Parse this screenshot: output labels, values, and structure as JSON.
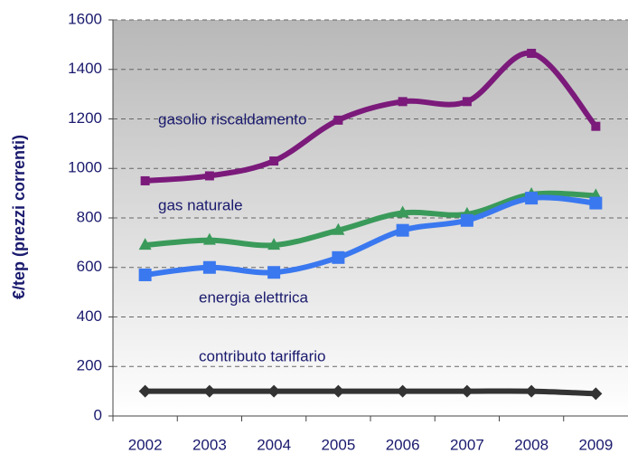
{
  "chart_data": {
    "type": "line",
    "y_label": "€/tep (prezzi correnti)",
    "categories": [
      "2002",
      "2003",
      "2004",
      "2005",
      "2006",
      "2007",
      "2008",
      "2009"
    ],
    "series": [
      {
        "name": "gasolio riscaldamento",
        "color": "#7b1a7b",
        "marker": "square",
        "values": [
          950,
          970,
          1030,
          1195,
          1270,
          1270,
          1465,
          1170
        ]
      },
      {
        "name": "gas naturale",
        "color": "#3a9a5a",
        "marker": "triangle",
        "values": [
          690,
          710,
          690,
          750,
          820,
          815,
          895,
          890
        ]
      },
      {
        "name": "energia elettrica",
        "color": "#3a78f0",
        "marker": "bigsquare",
        "values": [
          570,
          600,
          580,
          640,
          750,
          790,
          880,
          860
        ]
      },
      {
        "name": "contributo tariffario",
        "color": "#333333",
        "marker": "diamond",
        "values": [
          100,
          100,
          100,
          100,
          100,
          100,
          100,
          90
        ]
      }
    ],
    "ylim": [
      0,
      1600
    ],
    "yticks": [
      0,
      200,
      400,
      600,
      800,
      1000,
      1200,
      1400,
      1600
    ],
    "grid": true
  }
}
